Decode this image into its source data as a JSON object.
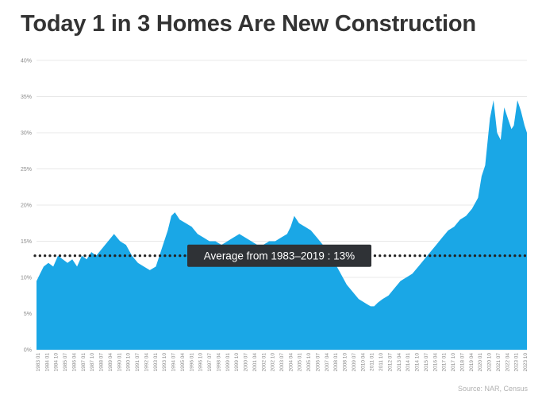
{
  "title": "Today 1 in 3 Homes Are New Construction",
  "source": "Source: NAR, Census",
  "annotation": "Average from 1983–2019 : 13%",
  "colors": {
    "area": "#1aa7e6",
    "average_line": "#222222",
    "annotation_bg": "#2f3236",
    "annotation_text": "#ffffff",
    "grid": "#e8e8e8"
  },
  "chart_data": {
    "type": "area",
    "ylim": [
      0,
      40
    ],
    "ytick_labels": [
      "0%",
      "5%",
      "10%",
      "15%",
      "20%",
      "25%",
      "30%",
      "35%",
      "40%"
    ],
    "yticks": [
      0,
      5,
      10,
      15,
      20,
      25,
      30,
      35,
      40
    ],
    "grid": true,
    "average_value": 13,
    "xtick_labels": [
      "1983 01",
      "1984 01",
      "1984 10",
      "1985 07",
      "1986 04",
      "1987 01",
      "1987 10",
      "1988 07",
      "1989 04",
      "1990 01",
      "1990 10",
      "1991 07",
      "1992 04",
      "1993 01",
      "1993 10",
      "1994 07",
      "1995 04",
      "1996 01",
      "1996 10",
      "1997 07",
      "1998 04",
      "1999 01",
      "1999 10",
      "2000 07",
      "2001 04",
      "2002 01",
      "2002 10",
      "2003 07",
      "2004 04",
      "2005 01",
      "2005 10",
      "2006 07",
      "2007 04",
      "2008 01",
      "2008 10",
      "2009 07",
      "2010 04",
      "2011 01",
      "2011 10",
      "2012 07",
      "2013 04",
      "2014 01",
      "2014 10",
      "2015 07",
      "2016 04",
      "2017 01",
      "2017 10",
      "2018 07",
      "2019 04",
      "2020 01",
      "2020 10",
      "2021 07",
      "2022 04",
      "2023 01",
      "2023 10"
    ],
    "x": [
      1983.0,
      1983.3,
      1983.6,
      1984.0,
      1984.4,
      1984.8,
      1985.2,
      1985.6,
      1986.0,
      1986.4,
      1986.8,
      1987.2,
      1987.6,
      1988.0,
      1988.5,
      1989.0,
      1989.5,
      1990.0,
      1990.5,
      1991.0,
      1991.5,
      1992.0,
      1992.5,
      1993.0,
      1993.5,
      1994.0,
      1994.3,
      1994.6,
      1995.0,
      1995.5,
      1996.0,
      1996.5,
      1997.0,
      1997.5,
      1998.0,
      1998.5,
      1999.0,
      1999.5,
      2000.0,
      2000.5,
      2001.0,
      2001.5,
      2002.0,
      2002.5,
      2003.0,
      2003.5,
      2004.0,
      2004.3,
      2004.6,
      2005.0,
      2005.5,
      2006.0,
      2006.5,
      2007.0,
      2007.5,
      2008.0,
      2008.5,
      2009.0,
      2009.5,
      2010.0,
      2010.5,
      2011.0,
      2011.3,
      2011.6,
      2012.0,
      2012.5,
      2013.0,
      2013.5,
      2014.0,
      2014.5,
      2015.0,
      2015.5,
      2016.0,
      2016.5,
      2017.0,
      2017.5,
      2018.0,
      2018.5,
      2019.0,
      2019.5,
      2020.0,
      2020.3,
      2020.6,
      2021.0,
      2021.3,
      2021.6,
      2021.9,
      2022.2,
      2022.5,
      2022.8,
      2023.0,
      2023.3,
      2023.6,
      2023.9,
      2024.1
    ],
    "values": [
      9.5,
      10.5,
      11.5,
      12,
      11.5,
      13,
      12.5,
      12,
      12.5,
      11.5,
      13,
      12.5,
      13.5,
      13,
      14,
      15,
      16,
      15,
      14.5,
      13,
      12,
      11.5,
      11,
      11.5,
      14,
      16.5,
      18.5,
      19,
      18,
      17.5,
      17,
      16,
      15.5,
      15,
      15,
      14.5,
      15,
      15.5,
      16,
      15.5,
      15,
      14.5,
      14.5,
      15,
      15,
      15.5,
      16,
      17,
      18.5,
      17.5,
      17,
      16.5,
      15.5,
      14.5,
      13,
      12,
      10.5,
      9,
      8,
      7,
      6.5,
      6,
      6,
      6.5,
      7,
      7.5,
      8.5,
      9.5,
      10,
      10.5,
      11.5,
      12.5,
      13.5,
      14.5,
      15.5,
      16.5,
      17,
      18,
      18.5,
      19.5,
      21,
      24,
      25.5,
      32,
      34.5,
      30,
      29,
      33.5,
      32,
      30.5,
      31,
      34.5,
      33,
      31,
      30
    ]
  }
}
